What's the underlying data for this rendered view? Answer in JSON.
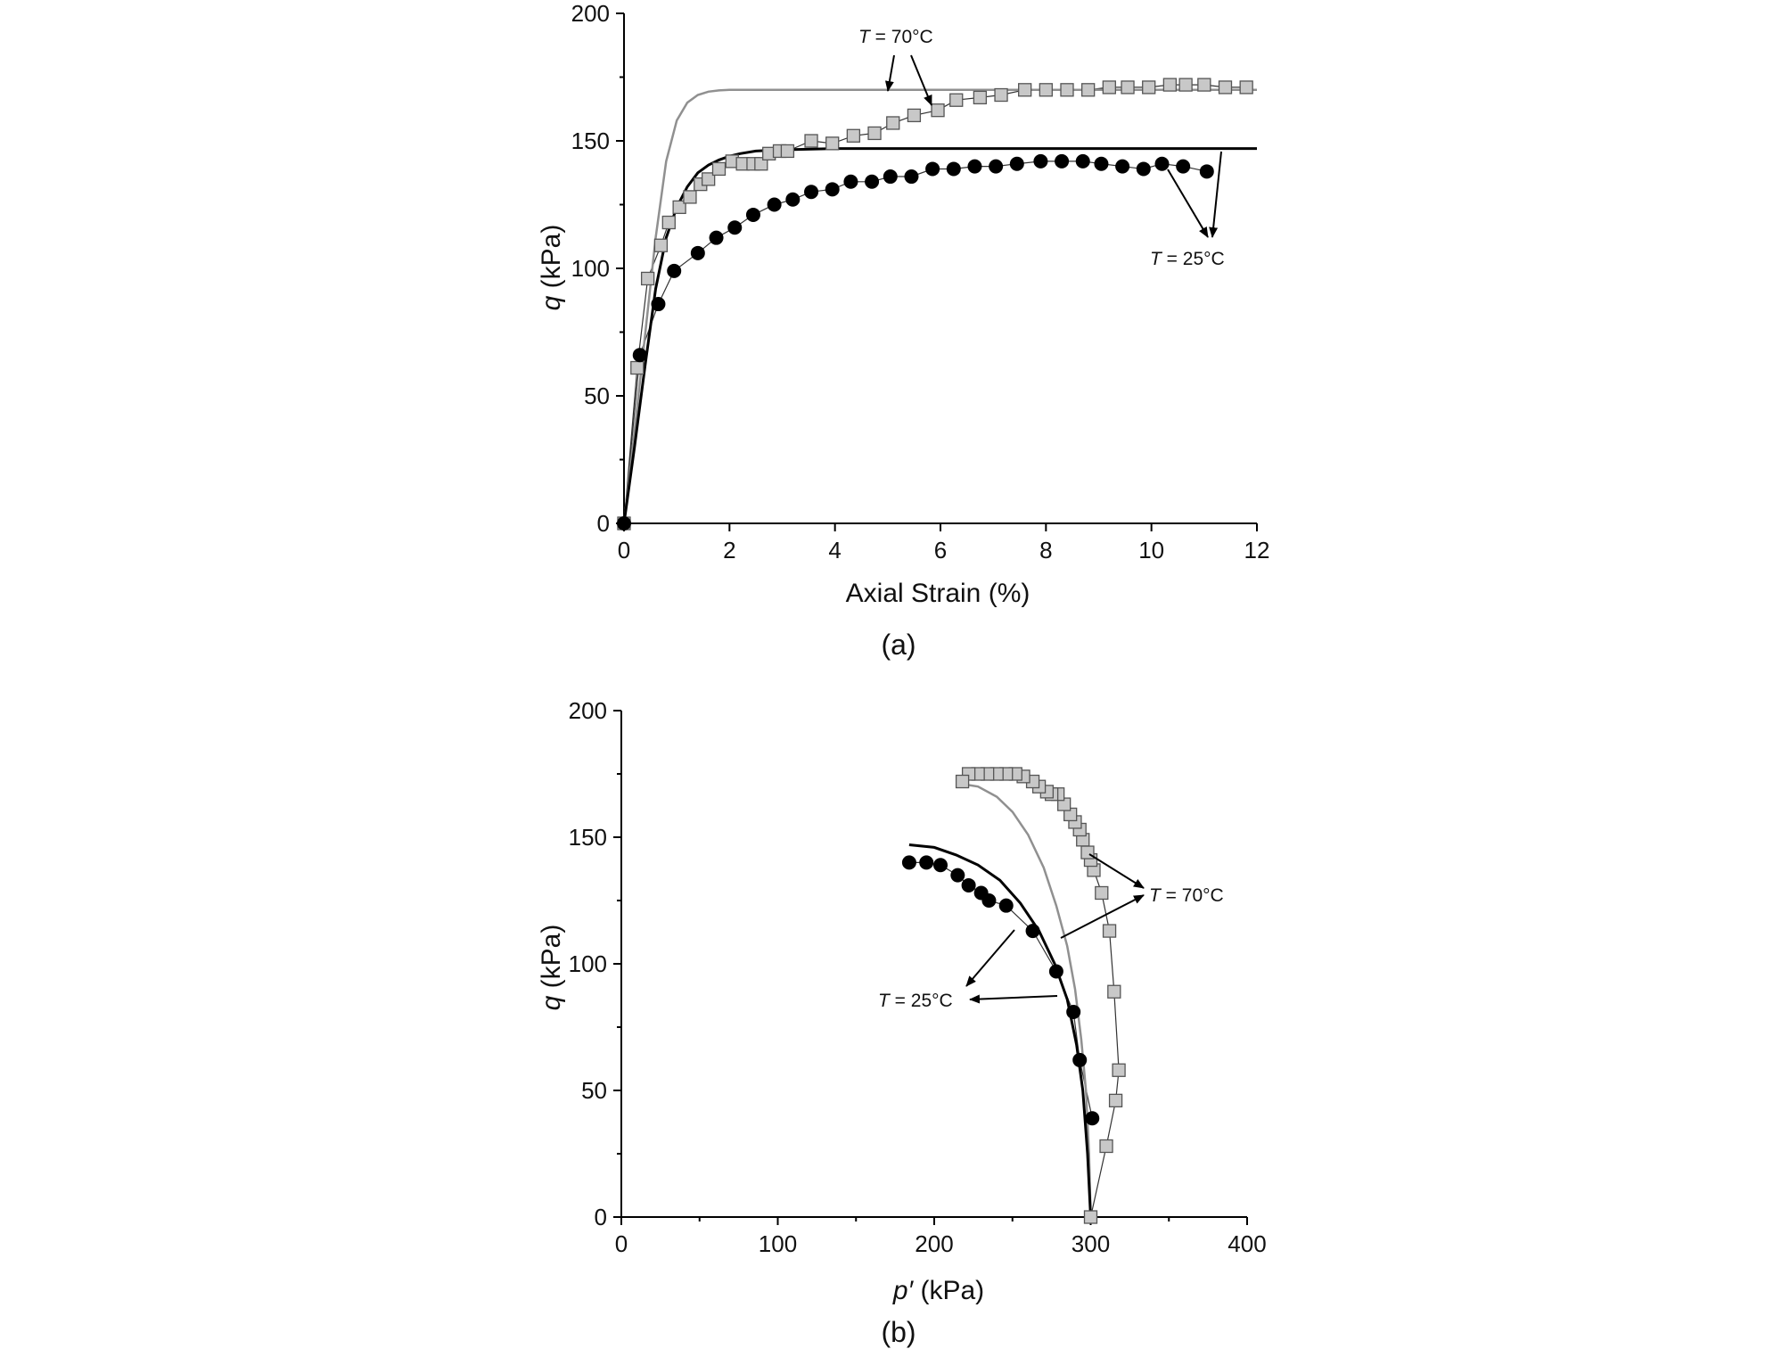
{
  "chart_data": [
    {
      "type": "scatter",
      "panel": "(a)",
      "caption": "(a)",
      "xlabel": "Axial Strain (%)",
      "ylabel_var": "q",
      "ylabel_unit": " (kPa)",
      "xlim": [
        0,
        12
      ],
      "ylim": [
        0,
        200
      ],
      "xticks": [
        0,
        2,
        4,
        6,
        8,
        10,
        12
      ],
      "yticks": [
        0,
        50,
        100,
        150,
        200
      ],
      "grid": false,
      "series": [
        {
          "name": "T = 70°C",
          "kind": "markers",
          "marker": "square",
          "color": "#c8c8c8",
          "x": [
            0,
            0.25,
            0.45,
            0.7,
            0.85,
            1.05,
            1.25,
            1.45,
            1.6,
            1.8,
            2.05,
            2.25,
            2.45,
            2.6,
            2.75,
            2.95,
            3.1,
            3.55,
            3.95,
            4.35,
            4.75,
            5.1,
            5.5,
            5.95,
            6.3,
            6.75,
            7.15,
            7.6,
            8.0,
            8.4,
            8.8,
            9.2,
            9.55,
            9.95,
            10.35,
            10.65,
            11.0,
            11.4,
            11.8
          ],
          "y": [
            0,
            61,
            96,
            109,
            118,
            124,
            128,
            133,
            135,
            139,
            142,
            141,
            141,
            141,
            145,
            146,
            146,
            150,
            149,
            152,
            153,
            157,
            160,
            162,
            166,
            167,
            168,
            170,
            170,
            170,
            170,
            171,
            171,
            171,
            172,
            172,
            172,
            171,
            171
          ]
        },
        {
          "name": "T = 25°C",
          "kind": "markers",
          "marker": "circle",
          "color": "#000000",
          "x": [
            0,
            0.3,
            0.65,
            0.95,
            1.4,
            1.75,
            2.1,
            2.45,
            2.85,
            3.2,
            3.55,
            3.95,
            4.3,
            4.7,
            5.05,
            5.45,
            5.85,
            6.25,
            6.65,
            7.05,
            7.45,
            7.9,
            8.3,
            8.7,
            9.05,
            9.45,
            9.85,
            10.2,
            10.6,
            11.05
          ],
          "y": [
            0,
            66,
            86,
            99,
            106,
            112,
            116,
            121,
            125,
            127,
            130,
            131,
            134,
            134,
            136,
            136,
            139,
            139,
            140,
            140,
            141,
            142,
            142,
            142,
            141,
            140,
            139,
            141,
            140,
            138
          ]
        },
        {
          "name": "T = 70°C",
          "kind": "line",
          "color": "#909090",
          "x": [
            0,
            0.2,
            0.4,
            0.6,
            0.8,
            1.0,
            1.2,
            1.4,
            1.6,
            1.8,
            2.0,
            2.5,
            3,
            4,
            6,
            8,
            10,
            12
          ],
          "y": [
            0,
            36,
            74,
            112,
            142,
            158,
            165,
            168,
            169.3,
            169.8,
            170,
            170,
            170,
            170,
            170,
            170,
            170,
            170
          ]
        },
        {
          "name": "T = 25°C",
          "kind": "line",
          "color": "#000000",
          "x": [
            0,
            0.2,
            0.4,
            0.6,
            0.8,
            1.0,
            1.2,
            1.4,
            1.6,
            1.8,
            2.0,
            2.2,
            2.5,
            3.0,
            4,
            6,
            8,
            10,
            12
          ],
          "y": [
            0,
            30,
            62,
            92,
            112,
            124,
            132,
            137.5,
            140.5,
            142.5,
            144,
            145,
            146,
            146.5,
            147,
            147,
            147,
            147,
            147
          ]
        }
      ],
      "annotations": [
        {
          "var": "T",
          "text": " = 70°C",
          "x": 6.4,
          "y": 189
        },
        {
          "var": "T",
          "text": " = 25°C",
          "x": 10.6,
          "y": 102
        }
      ]
    },
    {
      "type": "scatter",
      "panel": "(b)",
      "caption": "(b)",
      "xlabel_var": "p′",
      "xlabel_unit": " (kPa)",
      "ylabel_var": "q",
      "ylabel_unit": " (kPa)",
      "xlim": [
        0,
        400
      ],
      "ylim": [
        0,
        200
      ],
      "xticks": [
        0,
        100,
        200,
        300,
        400
      ],
      "yticks": [
        0,
        50,
        100,
        150,
        200
      ],
      "grid": false,
      "series": [
        {
          "name": "T = 70°C",
          "kind": "markers",
          "marker": "square",
          "color": "#c8c8c8",
          "x": [
            300,
            310,
            316,
            318,
            315,
            312,
            307,
            302,
            300,
            298,
            295,
            293,
            290,
            287,
            283,
            279,
            275,
            272,
            267,
            263,
            257,
            252,
            246,
            240,
            234,
            228,
            222,
            218
          ],
          "y": [
            0,
            28,
            46,
            58,
            89,
            113,
            128,
            137,
            141,
            144,
            149,
            153,
            156,
            159,
            163,
            167,
            167,
            168,
            170,
            172,
            174,
            175,
            175,
            175,
            175,
            175,
            175,
            172
          ]
        },
        {
          "name": "T = 25°C",
          "kind": "markers",
          "marker": "circle",
          "color": "#000000",
          "x": [
            301,
            293,
            289,
            278,
            263,
            246,
            235,
            230,
            222,
            215,
            204,
            195,
            184
          ],
          "y": [
            39,
            62,
            81,
            97,
            113,
            123,
            125,
            128,
            131,
            135,
            139,
            140,
            140
          ]
        },
        {
          "name": "T = 70°C",
          "kind": "line",
          "color": "#909090",
          "x": [
            300,
            299,
            297,
            294,
            290,
            285,
            278,
            270,
            260,
            250,
            240,
            228,
            218
          ],
          "y": [
            0,
            25,
            50,
            70,
            90,
            107,
            123,
            138,
            151,
            160,
            166,
            170,
            171
          ]
        },
        {
          "name": "T = 25°C",
          "kind": "line",
          "color": "#000000",
          "x": [
            300,
            298,
            295,
            291,
            285,
            277,
            267,
            255,
            242,
            228,
            214,
            200,
            184
          ],
          "y": [
            0,
            25,
            50,
            68,
            86,
            100,
            113,
            124,
            133,
            139,
            143,
            146,
            147
          ]
        }
      ],
      "annotations": [
        {
          "var": "T",
          "text": " = 70°C",
          "x": 339,
          "y": 127
        },
        {
          "var": "T",
          "text": " = 25°C",
          "x": 167,
          "y": 85
        }
      ]
    }
  ]
}
